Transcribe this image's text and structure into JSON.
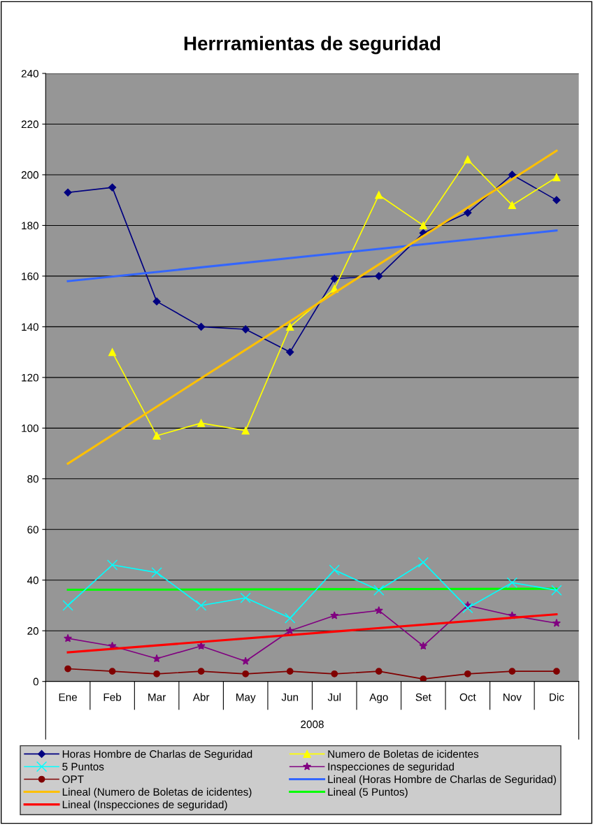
{
  "chart_data": {
    "type": "line",
    "title": "Herrramientas de seguridad",
    "categories": [
      "Ene",
      "Feb",
      "Mar",
      "Abr",
      "May",
      "Jun",
      "Jul",
      "Ago",
      "Set",
      "Oct",
      "Nov",
      "Dic"
    ],
    "ylim": [
      0,
      240
    ],
    "yticks": [
      0,
      20,
      40,
      60,
      80,
      100,
      120,
      140,
      160,
      180,
      200,
      220,
      240
    ],
    "grid": "y",
    "legend": "bottom",
    "annotations": [
      "2008"
    ],
    "series": [
      {
        "name": "Horas Hombre de Charlas de Seguridad",
        "color": "#000080",
        "marker": "diamond",
        "values": [
          193,
          195,
          150,
          140,
          139,
          130,
          159,
          160,
          177,
          185,
          200,
          190
        ]
      },
      {
        "name": "Numero de Boletas de icidentes",
        "color": "#ffff00",
        "marker": "triangle",
        "values": [
          null,
          130,
          97,
          102,
          99,
          140,
          155,
          192,
          180,
          206,
          188,
          199
        ]
      },
      {
        "name": "5 Puntos",
        "color": "#00ffff",
        "marker": "cross",
        "values": [
          30,
          46,
          43,
          30,
          33,
          25,
          44,
          36,
          47,
          29,
          39,
          36
        ]
      },
      {
        "name": "Inspecciones de seguridad",
        "color": "#800080",
        "marker": "star",
        "values": [
          17,
          14,
          9,
          14,
          8,
          20,
          26,
          28,
          14,
          30,
          26,
          23
        ]
      },
      {
        "name": "OPT",
        "color": "#800000",
        "marker": "circle",
        "values": [
          5,
          4,
          3,
          4,
          3,
          4,
          3,
          4,
          1,
          3,
          4,
          4
        ]
      },
      {
        "name": "Lineal (Horas Hombre de Charlas de Seguridad)",
        "color": "#3366ff",
        "marker": "none",
        "x": [
          "Ene",
          "Dic"
        ],
        "values": [
          158,
          178
        ]
      },
      {
        "name": "Lineal (Numero de Boletas de icidentes)",
        "color": "#ffc000",
        "marker": "none",
        "x": [
          "Ene",
          "Dic"
        ],
        "values": [
          86,
          209.5
        ]
      },
      {
        "name": "Lineal (5 Puntos)",
        "color": "#00ff00",
        "marker": "none",
        "x": [
          "Ene",
          "Dic"
        ],
        "values": [
          36.2,
          36.6
        ]
      },
      {
        "name": "Lineal (Inspecciones de seguridad)",
        "color": "#ff0000",
        "marker": "none",
        "x": [
          "Ene",
          "Dic"
        ],
        "values": [
          11.5,
          26.5
        ]
      }
    ]
  }
}
